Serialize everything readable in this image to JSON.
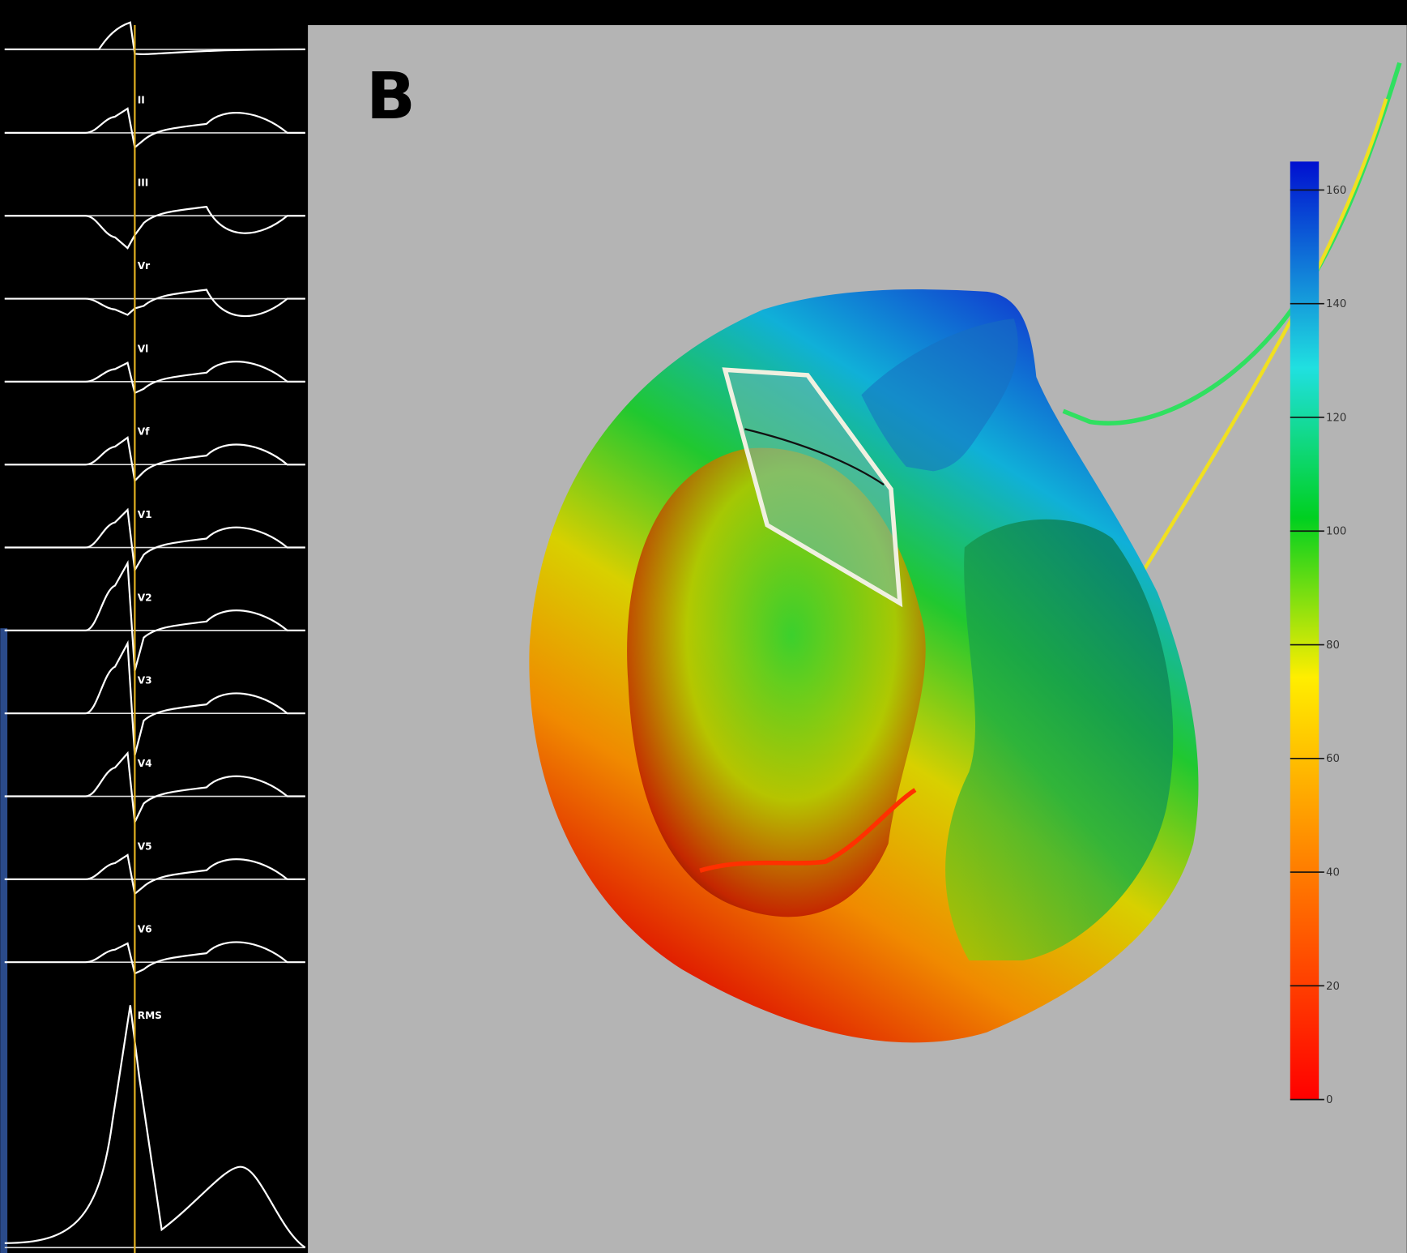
{
  "panel_label": "B",
  "ecg": {
    "leads": [
      "II",
      "III",
      "Vr",
      "Vl",
      "Vf",
      "V1",
      "V2",
      "V3",
      "V4",
      "V5",
      "V6",
      "RMS"
    ]
  },
  "colorbar": {
    "range": [
      0,
      165
    ],
    "ticks": [
      0,
      20,
      40,
      60,
      80,
      100,
      120,
      140,
      160
    ]
  }
}
